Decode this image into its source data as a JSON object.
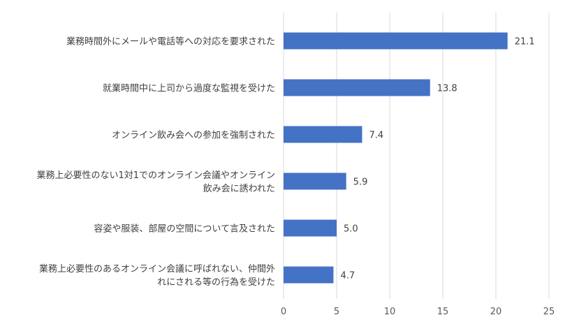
{
  "chart_data": {
    "type": "bar",
    "orientation": "horizontal",
    "categories": [
      [
        "業務時間外にメールや電話等への対応を要求された"
      ],
      [
        "就業時間中に上司から過度な監視を受けた"
      ],
      [
        "オンライン飲み会への参加を強制された"
      ],
      [
        "業務上必要性のない1対1でのオンライン会議やオンライン",
        "飲み会に誘われた"
      ],
      [
        "容姿や服装、部屋の空間について言及された"
      ],
      [
        "業務上必要性のあるオンライン会議に呼ばれない、仲間外",
        "れにされる等の行為を受けた"
      ]
    ],
    "values": [
      21.1,
      13.8,
      7.4,
      5.9,
      5.0,
      4.7
    ],
    "value_labels": [
      "21.1",
      "13.8",
      "7.4",
      "5.9",
      "5.0",
      "4.7"
    ],
    "xlim": [
      0,
      25
    ],
    "xticks": [
      0,
      5,
      10,
      15,
      20,
      25
    ],
    "grid": "vertical",
    "legend": "none",
    "colors": {
      "bar": "#4472C4",
      "grid": "#D9D9D9",
      "text": "#404040"
    }
  }
}
